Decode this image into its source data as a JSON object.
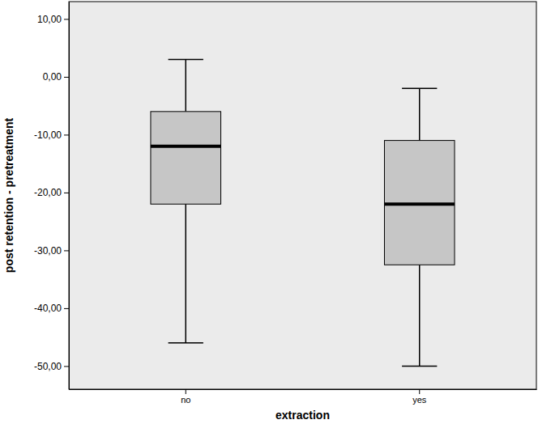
{
  "chart_data": {
    "type": "box",
    "x_label": "extraction",
    "y_label": "post retention - pretreatment",
    "categories": [
      "no",
      "yes"
    ],
    "boxes": [
      {
        "min": -46,
        "q1": -22,
        "median": -12,
        "q3": -6,
        "max": 3
      },
      {
        "min": -50,
        "q1": -32.5,
        "median": -22,
        "q3": -11,
        "max": -2
      }
    ],
    "color": "#c6c6c6",
    "ylim": [
      -54,
      13
    ],
    "yticks": [
      {
        "value": 10,
        "label": "10,00"
      },
      {
        "value": 0,
        "label": "0,00"
      },
      {
        "value": -10,
        "label": "-10,00"
      },
      {
        "value": -20,
        "label": "-20,00"
      },
      {
        "value": -30,
        "label": "-30,00"
      },
      {
        "value": -40,
        "label": "-40,00"
      },
      {
        "value": -50,
        "label": "-50,00"
      }
    ],
    "grid": false
  }
}
